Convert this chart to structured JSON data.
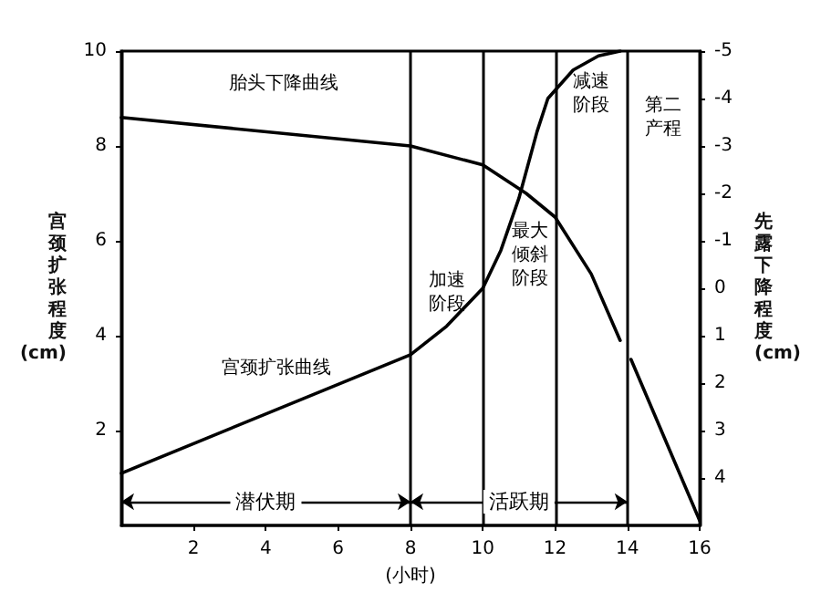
{
  "chart_data": {
    "type": "line",
    "xlabel": "(小时)",
    "ylabel": "宫颈扩张程度 (cm)",
    "y2label": "先露下降程度 (cm)",
    "xlim": [
      0,
      16
    ],
    "xticks": [
      2,
      4,
      6,
      8,
      10,
      12,
      14,
      16
    ],
    "ylim": [
      0,
      10
    ],
    "yticks": [
      2,
      4,
      6,
      8,
      10
    ],
    "y2lim": [
      5,
      -5
    ],
    "y2ticks": [
      -5,
      -4,
      -3,
      -2,
      -1,
      0,
      1,
      2,
      3,
      4
    ],
    "series": [
      {
        "color": "#000000",
        "x": [
          0,
          8,
          9,
          10,
          10.5,
          11,
          11.5,
          11.8,
          12.5,
          13.2,
          13.8
        ],
        "values": [
          1.1,
          3.6,
          4.2,
          5.0,
          5.8,
          6.9,
          8.3,
          9.0,
          9.6,
          9.9,
          10
        ]
      },
      {
        "color": "#000000",
        "axis": "y2",
        "x": [
          0,
          8,
          10,
          11.2,
          12,
          13,
          13.8,
          14,
          14.1,
          16
        ],
        "values": [
          -3.6,
          -3.0,
          -2.6,
          -2.0,
          -1.5,
          -0.3,
          1.1,
          null,
          1.5,
          4.9
        ]
      }
    ],
    "ref_lines": [
      {
        "axis": "x",
        "value": 8
      },
      {
        "axis": "x",
        "value": 10
      },
      {
        "axis": "x",
        "value": 12
      },
      {
        "axis": "x",
        "value": 14
      }
    ],
    "annotations": [
      "胎头下降曲线",
      "宫颈扩张曲线",
      "加速阶段",
      "最大倾斜阶段",
      "减速阶段",
      "第二产程",
      "潜伏期",
      "活跃期"
    ],
    "grid": false,
    "marker": "none",
    "line_style": "solid"
  }
}
